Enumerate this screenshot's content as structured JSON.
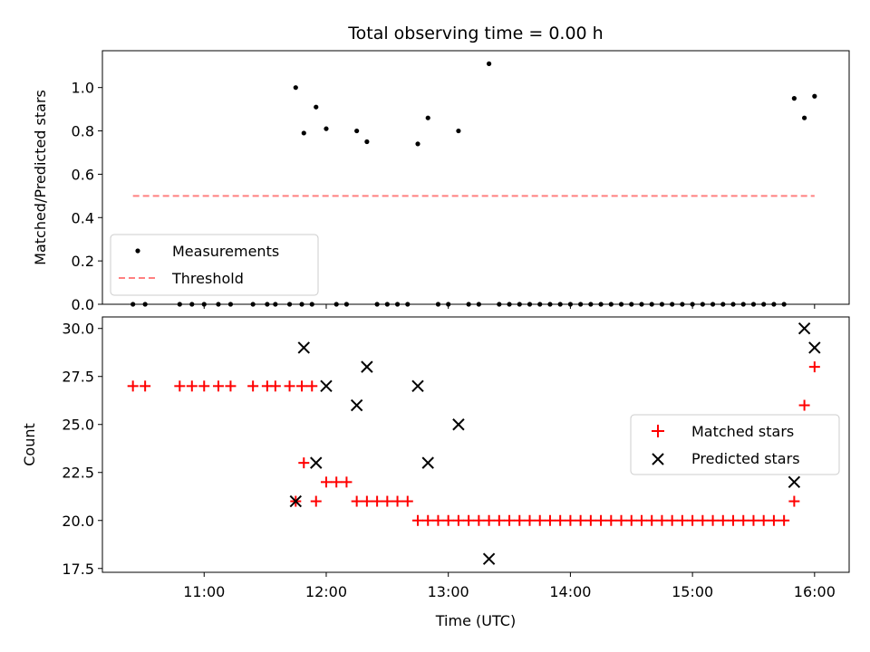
{
  "chart_data": [
    {
      "type": "scatter",
      "title": "Total observing time = 0.00 h",
      "xlabel": "",
      "ylabel": "Matched/Predicted stars",
      "xlim": [
        "10:10",
        "16:17"
      ],
      "ylim": [
        0,
        1.17
      ],
      "yticks": [
        "0.0",
        "0.2",
        "0.4",
        "0.6",
        "0.8",
        "1.0"
      ],
      "legend_position": "lower-left",
      "series": [
        {
          "name": "Measurements",
          "marker": "dot",
          "color": "#000000",
          "points": [
            [
              "10:25",
              0
            ],
            [
              "10:31",
              0
            ],
            [
              "10:48",
              0
            ],
            [
              "10:54",
              0
            ],
            [
              "11:00",
              0
            ],
            [
              "11:07",
              0
            ],
            [
              "11:13",
              0
            ],
            [
              "11:24",
              0
            ],
            [
              "11:31",
              0
            ],
            [
              "11:35",
              0
            ],
            [
              "11:42",
              0
            ],
            [
              "11:48",
              0
            ],
            [
              "11:53",
              0
            ],
            [
              "11:45",
              1.0
            ],
            [
              "11:49",
              0.79
            ],
            [
              "11:55",
              0.91
            ],
            [
              "12:00",
              0.81
            ],
            [
              "12:05",
              0
            ],
            [
              "12:10",
              0
            ],
            [
              "12:15",
              0.8
            ],
            [
              "12:20",
              0.75
            ],
            [
              "12:25",
              0
            ],
            [
              "12:30",
              0
            ],
            [
              "12:35",
              0
            ],
            [
              "12:40",
              0
            ],
            [
              "12:45",
              0.74
            ],
            [
              "12:50",
              0.86
            ],
            [
              "12:55",
              0
            ],
            [
              "13:00",
              0
            ],
            [
              "13:05",
              0.8
            ],
            [
              "13:10",
              0
            ],
            [
              "13:15",
              0
            ],
            [
              "13:20",
              1.11
            ],
            [
              "13:25",
              0
            ],
            [
              "13:30",
              0
            ],
            [
              "13:35",
              0
            ],
            [
              "13:40",
              0
            ],
            [
              "13:45",
              0
            ],
            [
              "13:50",
              0
            ],
            [
              "13:55",
              0
            ],
            [
              "14:00",
              0
            ],
            [
              "14:05",
              0
            ],
            [
              "14:10",
              0
            ],
            [
              "14:15",
              0
            ],
            [
              "14:20",
              0
            ],
            [
              "14:25",
              0
            ],
            [
              "14:30",
              0
            ],
            [
              "14:35",
              0
            ],
            [
              "14:40",
              0
            ],
            [
              "14:45",
              0
            ],
            [
              "14:50",
              0
            ],
            [
              "14:55",
              0
            ],
            [
              "15:00",
              0
            ],
            [
              "15:05",
              0
            ],
            [
              "15:10",
              0
            ],
            [
              "15:15",
              0
            ],
            [
              "15:20",
              0
            ],
            [
              "15:25",
              0
            ],
            [
              "15:30",
              0
            ],
            [
              "15:35",
              0
            ],
            [
              "15:40",
              0
            ],
            [
              "15:45",
              0
            ],
            [
              "15:50",
              0.95
            ],
            [
              "15:55",
              0.86
            ],
            [
              "16:00",
              0.96
            ]
          ]
        },
        {
          "name": "Threshold",
          "type": "line",
          "style": "dashed",
          "color": "#ff8080",
          "points": [
            [
              "10:25",
              0.5
            ],
            [
              "16:00",
              0.5
            ]
          ]
        }
      ]
    },
    {
      "type": "scatter",
      "title": "",
      "xlabel": "Time (UTC)",
      "ylabel": "Count",
      "xlim": [
        "10:10",
        "16:17"
      ],
      "ylim": [
        17.3,
        30.6
      ],
      "xticks": [
        "11:00",
        "12:00",
        "13:00",
        "14:00",
        "15:00",
        "16:00"
      ],
      "yticks": [
        "17.5",
        "20.0",
        "22.5",
        "25.0",
        "27.5",
        "30.0"
      ],
      "legend_position": "center-right",
      "series": [
        {
          "name": "Matched stars",
          "marker": "plus",
          "color": "#ff0000",
          "points": [
            [
              "10:25",
              27
            ],
            [
              "10:31",
              27
            ],
            [
              "10:48",
              27
            ],
            [
              "10:54",
              27
            ],
            [
              "11:00",
              27
            ],
            [
              "11:07",
              27
            ],
            [
              "11:13",
              27
            ],
            [
              "11:24",
              27
            ],
            [
              "11:31",
              27
            ],
            [
              "11:35",
              27
            ],
            [
              "11:42",
              27
            ],
            [
              "11:48",
              27
            ],
            [
              "11:53",
              27
            ],
            [
              "11:45",
              21
            ],
            [
              "11:49",
              23
            ],
            [
              "11:55",
              21
            ],
            [
              "12:00",
              22
            ],
            [
              "12:05",
              22
            ],
            [
              "12:10",
              22
            ],
            [
              "12:15",
              21
            ],
            [
              "12:20",
              21
            ],
            [
              "12:25",
              21
            ],
            [
              "12:30",
              21
            ],
            [
              "12:35",
              21
            ],
            [
              "12:40",
              21
            ],
            [
              "12:45",
              20
            ],
            [
              "12:50",
              20
            ],
            [
              "12:55",
              20
            ],
            [
              "13:00",
              20
            ],
            [
              "13:05",
              20
            ],
            [
              "13:10",
              20
            ],
            [
              "13:15",
              20
            ],
            [
              "13:20",
              20
            ],
            [
              "13:25",
              20
            ],
            [
              "13:30",
              20
            ],
            [
              "13:35",
              20
            ],
            [
              "13:40",
              20
            ],
            [
              "13:45",
              20
            ],
            [
              "13:50",
              20
            ],
            [
              "13:55",
              20
            ],
            [
              "14:00",
              20
            ],
            [
              "14:05",
              20
            ],
            [
              "14:10",
              20
            ],
            [
              "14:15",
              20
            ],
            [
              "14:20",
              20
            ],
            [
              "14:25",
              20
            ],
            [
              "14:30",
              20
            ],
            [
              "14:35",
              20
            ],
            [
              "14:40",
              20
            ],
            [
              "14:45",
              20
            ],
            [
              "14:50",
              20
            ],
            [
              "14:55",
              20
            ],
            [
              "15:00",
              20
            ],
            [
              "15:05",
              20
            ],
            [
              "15:10",
              20
            ],
            [
              "15:15",
              20
            ],
            [
              "15:20",
              20
            ],
            [
              "15:25",
              20
            ],
            [
              "15:30",
              20
            ],
            [
              "15:35",
              20
            ],
            [
              "15:40",
              20
            ],
            [
              "15:45",
              20
            ],
            [
              "15:50",
              21
            ],
            [
              "15:55",
              26
            ],
            [
              "16:00",
              28
            ]
          ]
        },
        {
          "name": "Predicted stars",
          "marker": "x",
          "color": "#000000",
          "points": [
            [
              "11:45",
              21
            ],
            [
              "11:49",
              29
            ],
            [
              "11:55",
              23
            ],
            [
              "12:00",
              27
            ],
            [
              "12:15",
              26
            ],
            [
              "12:20",
              28
            ],
            [
              "12:45",
              27
            ],
            [
              "12:50",
              23
            ],
            [
              "13:05",
              25
            ],
            [
              "13:20",
              18
            ],
            [
              "15:50",
              22
            ],
            [
              "15:55",
              30
            ],
            [
              "16:00",
              29
            ]
          ]
        }
      ]
    }
  ]
}
